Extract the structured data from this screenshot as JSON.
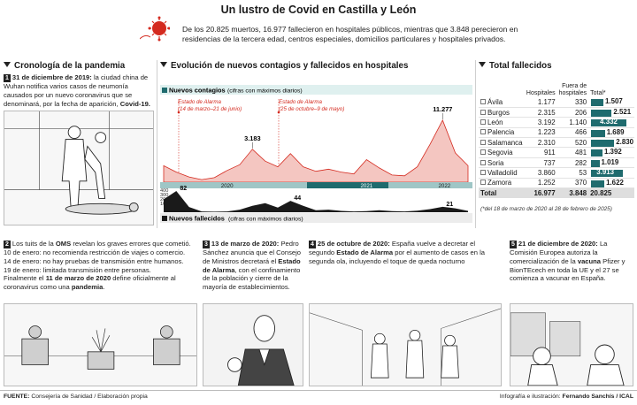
{
  "title": "Un lustro de Covid en Castilla y León",
  "intro": "De los 20.825 muertos, 16.977 fallecieron en hospitales públicos, mientras que 3.848 perecieron en residencias de la tercera edad, centros especiales, domicilios particulares y hospitales privados.",
  "sections": {
    "cronologia": "Cronología de la pandemia",
    "evolucion": "Evolución de nuevos contagios y fallecidos en hospitales",
    "total": "Total fallecidos"
  },
  "events": [
    {
      "num": "1",
      "date": "31 de diciembre de 2019:",
      "text": "la ciudad china de Wuhan notifica varios casos de neumonía causados por un nuevo coronavirus que se denominará, por la fecha de aparición,",
      "bold_end": "Covid-19."
    },
    {
      "num": "2",
      "pre": "Los tuits de la",
      "bold": "OMS",
      "text": "revelan los graves errores que cometió.",
      "lines": [
        "10 de enero: no recomienda restricción de viajes o comercio.",
        "14 de enero: no hay pruebas de transmisión entre humanos.",
        "19 de enero: limitada transmisión entre personas."
      ],
      "final_pre": "Finalmente el",
      "final_bold": "11 de marzo de 2020",
      "final_mid": "define oficialmente al coronavirus como una",
      "final_bold2": "pandemia",
      "final_end": "."
    },
    {
      "num": "3",
      "date": "13 de marzo de 2020:",
      "text": "Pedro Sánchez anuncia que el Consejo de Ministros decretará el",
      "bold": "Estado de Alarma",
      "text2": ", con el confinamiento de la población y cierre de la mayoría de establecimientos."
    },
    {
      "num": "4",
      "date": "25 de octubre de 2020:",
      "text": "España vuelve a decretar el segundo",
      "bold": "Estado de Alarma",
      "text2": "por el aumento de casos en la segunda ola, incluyendo el toque de queda nocturno"
    },
    {
      "num": "5",
      "date": "21 de diciembre de 2020:",
      "text": "La Comisión Europea autoriza la comercialización de la",
      "bold": "vacuna",
      "text2": "Pfizer y BionTEcech en toda la UE y el 27 se comienza a vacunar en España."
    }
  ],
  "chart_labels": {
    "contagios_title": "Nuevos contagios",
    "contagios_note": "(cifras con máximos diarios)",
    "fallecidos_title": "Nuevos fallecidos",
    "fallecidos_note": "(cifras con máximos diarios)",
    "alarma1": "Estado de Alarma",
    "alarma1_dates": "(14 de marzo–21 de junio)",
    "alarma2": "Estado de Alarma",
    "alarma2_dates": "(25 de octubre–9 de mayo)"
  },
  "chart_data": [
    {
      "type": "area",
      "title": "Nuevos contagios",
      "subtitle": "(cifras con máximos diarios)",
      "x_axis_labels": [
        "2020",
        "2021",
        "2022"
      ],
      "annotations": [
        {
          "label": "3.183",
          "x": "2020-10",
          "y": 3183
        },
        {
          "label": "11.277",
          "x": "2022-01",
          "y": 11277
        }
      ],
      "y_ticks": [
        400,
        300,
        200,
        100
      ],
      "series": [
        {
          "name": "Nuevos contagios",
          "values": [
            [
              "2020-03",
              800
            ],
            [
              "2020-04",
              300
            ],
            [
              "2020-05",
              80
            ],
            [
              "2020-06",
              20
            ],
            [
              "2020-07",
              60
            ],
            [
              "2020-08",
              400
            ],
            [
              "2020-09",
              900
            ],
            [
              "2020-10",
              3183
            ],
            [
              "2020-11",
              1300
            ],
            [
              "2020-12",
              700
            ],
            [
              "2021-01",
              2400
            ],
            [
              "2021-02",
              700
            ],
            [
              "2021-03",
              350
            ],
            [
              "2021-04",
              500
            ],
            [
              "2021-05",
              300
            ],
            [
              "2021-06",
              200
            ],
            [
              "2021-07",
              1500
            ],
            [
              "2021-08",
              600
            ],
            [
              "2021-09",
              150
            ],
            [
              "2021-10",
              120
            ],
            [
              "2021-11",
              700
            ],
            [
              "2021-12",
              4200
            ],
            [
              "2022-01",
              11277
            ],
            [
              "2022-02",
              2500
            ],
            [
              "2022-03",
              800
            ]
          ]
        }
      ]
    },
    {
      "type": "area",
      "title": "Nuevos fallecidos",
      "subtitle": "(cifras con máximos diarios)",
      "annotations": [
        {
          "label": "82",
          "x": "2020-04",
          "y": 82
        },
        {
          "label": "44",
          "x": "2021-01",
          "y": 44
        },
        {
          "label": "21",
          "x": "2022-01",
          "y": 21
        }
      ],
      "series": [
        {
          "name": "Nuevos fallecidos",
          "values": [
            [
              "2020-03",
              50
            ],
            [
              "2020-04",
              82
            ],
            [
              "2020-05",
              20
            ],
            [
              "2020-06",
              3
            ],
            [
              "2020-07",
              2
            ],
            [
              "2020-08",
              3
            ],
            [
              "2020-09",
              10
            ],
            [
              "2020-10",
              25
            ],
            [
              "2020-11",
              35
            ],
            [
              "2020-12",
              18
            ],
            [
              "2021-01",
              44
            ],
            [
              "2021-02",
              25
            ],
            [
              "2021-03",
              8
            ],
            [
              "2021-04",
              10
            ],
            [
              "2021-05",
              5
            ],
            [
              "2021-06",
              3
            ],
            [
              "2021-07",
              4
            ],
            [
              "2021-08",
              8
            ],
            [
              "2021-09",
              4
            ],
            [
              "2021-10",
              3
            ],
            [
              "2021-11",
              6
            ],
            [
              "2021-12",
              12
            ],
            [
              "2022-01",
              21
            ],
            [
              "2022-02",
              15
            ],
            [
              "2022-03",
              5
            ]
          ]
        }
      ]
    },
    {
      "type": "table",
      "title": "Total fallecidos",
      "columns": [
        "",
        "Hospitales",
        "Fuera de hospitales",
        "Total*"
      ],
      "rows": [
        {
          "name": "Ávila",
          "hosp": "1.177",
          "fuera": "330",
          "total": "1.507",
          "v": 1507
        },
        {
          "name": "Burgos",
          "hosp": "2.315",
          "fuera": "206",
          "total": "2.521",
          "v": 2521
        },
        {
          "name": "León",
          "hosp": "3.192",
          "fuera": "1.140",
          "total": "4.332",
          "v": 4332
        },
        {
          "name": "Palencia",
          "hosp": "1.223",
          "fuera": "466",
          "total": "1.689",
          "v": 1689
        },
        {
          "name": "Salamanca",
          "hosp": "2.310",
          "fuera": "520",
          "total": "2.830",
          "v": 2830
        },
        {
          "name": "Segovia",
          "hosp": "911",
          "fuera": "481",
          "total": "1.392",
          "v": 1392
        },
        {
          "name": "Soria",
          "hosp": "737",
          "fuera": "282",
          "total": "1.019",
          "v": 1019
        },
        {
          "name": "Valladolid",
          "hosp": "3.860",
          "fuera": "53",
          "total": "3.913",
          "v": 3913
        },
        {
          "name": "Zamora",
          "hosp": "1.252",
          "fuera": "370",
          "total": "1.622",
          "v": 1622
        }
      ],
      "total_row": {
        "name": "Total",
        "hosp": "16.977",
        "fuera": "3.848",
        "total": "20.825"
      },
      "note": "(*del 18 de marzo de 2020 al 28 de febrero de 2025)"
    }
  ],
  "footer": {
    "source_label": "FUENTE:",
    "source": "Consejería de Sanidad / Elaboración propia",
    "credit_pre": "Infografía e ilustración:",
    "credit": "Fernando Sanchís / ICAL"
  },
  "colors": {
    "teal": "#1f6b6e",
    "red": "#d42a1f",
    "pink": "#f4c6c1",
    "dark": "#1a1a1a"
  }
}
